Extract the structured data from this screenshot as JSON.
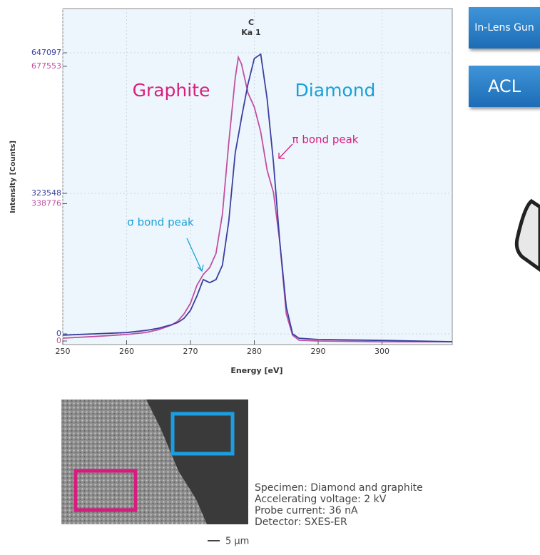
{
  "chart_data": {
    "type": "line",
    "title": "C",
    "subtitle": "Ka 1",
    "x_label": "Energy [eV]",
    "y_label": "Intensity [Counts]",
    "x": [
      250,
      255,
      260,
      263,
      265,
      267,
      268,
      269,
      270,
      271,
      272,
      273,
      274,
      275,
      276,
      277,
      277.5,
      278,
      279,
      280,
      281,
      282,
      283,
      284,
      285,
      286,
      287,
      290,
      300,
      311
    ],
    "series": [
      {
        "name": "Graphite",
        "color": "#c24fa0",
        "label_color": "#d6207e",
        "axis": "y2",
        "values": [
          7000,
          11000,
          16000,
          21000,
          28000,
          39000,
          49000,
          67000,
          93000,
          137000,
          164000,
          181000,
          216000,
          313000,
          489000,
          648000,
          700000,
          683000,
          612000,
          577000,
          516000,
          422000,
          366000,
          243000,
          67000,
          14000,
          2000,
          0,
          -2000,
          -2000
        ]
      },
      {
        "name": "Diamond",
        "color": "#3b3fa0",
        "label_color": "#1aa0d8",
        "values": [
          -3000,
          0,
          3000,
          8000,
          13000,
          21000,
          26000,
          36000,
          54000,
          87000,
          125000,
          118000,
          125000,
          158000,
          259000,
          416000,
          456000,
          498000,
          575000,
          634000,
          644000,
          542000,
          394000,
          210000,
          62000,
          0,
          -10000,
          -13000,
          -15000,
          -18000
        ]
      }
    ],
    "xlim": [
      250,
      311
    ],
    "xticks": [
      250,
      260,
      270,
      280,
      290,
      300
    ],
    "ylim": [
      -24600,
      749000
    ],
    "yticks": [
      0,
      323548,
      647097
    ],
    "y2lim": [
      -8800,
      820000
    ],
    "y2ticks": [
      0,
      338776,
      677553
    ],
    "grid": true,
    "annotations": [
      "π bond peak",
      "σ bond peak"
    ]
  },
  "buttons": [
    "In-Lens Gun",
    "ACL"
  ],
  "scale_bar": "5 μm",
  "specimen_info": [
    "Specimen: Diamond and graphite",
    "Accelerating voltage: 2 kV",
    "Probe current: 36 nA",
    "Detector: SXES-ER"
  ]
}
